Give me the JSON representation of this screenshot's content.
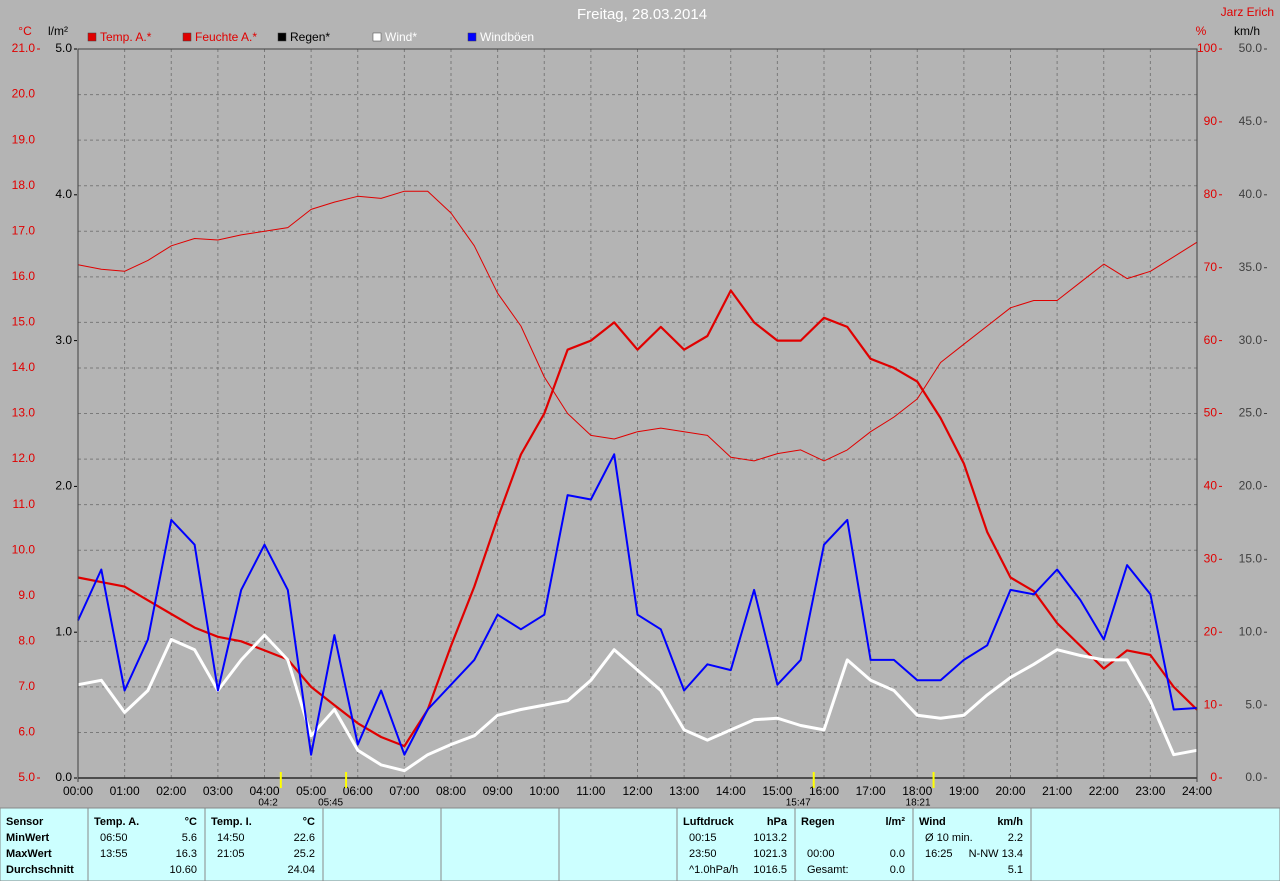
{
  "chart_data": {
    "type": "line",
    "title": "Freitag, 28.03.2014",
    "subtitle": "Jarz Erich",
    "ylabel": "°C",
    "y2label": "%",
    "y3label": "l/m²",
    "y4label": "km/h",
    "x": [
      0,
      0.5,
      1,
      1.5,
      2,
      2.5,
      3,
      3.5,
      4,
      4.5,
      5,
      5.5,
      6,
      6.5,
      7,
      7.5,
      8,
      8.5,
      9,
      9.5,
      10,
      10.5,
      11,
      11.5,
      12,
      12.5,
      13,
      13.5,
      14,
      14.5,
      15,
      15.5,
      16,
      16.5,
      17,
      17.5,
      18,
      18.5,
      19,
      19.5,
      20,
      20.5,
      21,
      21.5,
      22,
      22.5,
      23,
      23.5,
      24
    ],
    "xlim": [
      0,
      24
    ],
    "xticks": [
      {
        "value": 0,
        "label": "00:00"
      },
      {
        "value": 1,
        "label": "01:00"
      },
      {
        "value": 2,
        "label": "02:00"
      },
      {
        "value": 3,
        "label": "03:00"
      },
      {
        "value": 4,
        "label": "04:00"
      },
      {
        "value": 5,
        "label": "05:00"
      },
      {
        "value": 6,
        "label": "06:00"
      },
      {
        "value": 7,
        "label": "07:00"
      },
      {
        "value": 8,
        "label": "08:00"
      },
      {
        "value": 9,
        "label": "09:00"
      },
      {
        "value": 10,
        "label": "10:00"
      },
      {
        "value": 11,
        "label": "11:00"
      },
      {
        "value": 12,
        "label": "12:00"
      },
      {
        "value": 13,
        "label": "13:00"
      },
      {
        "value": 14,
        "label": "14:00"
      },
      {
        "value": 15,
        "label": "15:00"
      },
      {
        "value": 16,
        "label": "16:00"
      },
      {
        "value": 17,
        "label": "17:00"
      },
      {
        "value": 18,
        "label": "18:00"
      },
      {
        "value": 19,
        "label": "19:00"
      },
      {
        "value": 20,
        "label": "20:00"
      },
      {
        "value": 21,
        "label": "21:00"
      },
      {
        "value": 22,
        "label": "22:00"
      },
      {
        "value": 23,
        "label": "23:00"
      },
      {
        "value": 24,
        "label": "24:00"
      }
    ],
    "ylim": [
      5,
      21
    ],
    "yticks": [
      {
        "value": 5,
        "label": "5.0"
      },
      {
        "value": 6,
        "label": "6.0"
      },
      {
        "value": 7,
        "label": "7.0"
      },
      {
        "value": 8,
        "label": "8.0"
      },
      {
        "value": 9,
        "label": "9.0"
      },
      {
        "value": 10,
        "label": "10.0"
      },
      {
        "value": 11,
        "label": "11.0"
      },
      {
        "value": 12,
        "label": "12.0"
      },
      {
        "value": 13,
        "label": "13.0"
      },
      {
        "value": 14,
        "label": "14.0"
      },
      {
        "value": 15,
        "label": "15.0"
      },
      {
        "value": 16,
        "label": "16.0"
      },
      {
        "value": 17,
        "label": "17.0"
      },
      {
        "value": 18,
        "label": "18.0"
      },
      {
        "value": 19,
        "label": "19.0"
      },
      {
        "value": 20,
        "label": "20.0"
      },
      {
        "value": 21,
        "label": "21.0"
      }
    ],
    "y2lim": [
      0,
      100
    ],
    "y2ticks": [
      0,
      10,
      20,
      30,
      40,
      50,
      60,
      70,
      80,
      90,
      100
    ],
    "y3lim": [
      0,
      5
    ],
    "y3ticks": [
      {
        "value": 0,
        "label": "0.0"
      },
      {
        "value": 1,
        "label": "1.0"
      },
      {
        "value": 2,
        "label": "2.0"
      },
      {
        "value": 3,
        "label": "3.0"
      },
      {
        "value": 4,
        "label": "4.0"
      },
      {
        "value": 5,
        "label": "5.0"
      }
    ],
    "y4lim": [
      0,
      50
    ],
    "y4ticks": [
      {
        "value": 0,
        "label": "0.0"
      },
      {
        "value": 5,
        "label": "5.0"
      },
      {
        "value": 10,
        "label": "10.0"
      },
      {
        "value": 15,
        "label": "15.0"
      },
      {
        "value": 20,
        "label": "20.0"
      },
      {
        "value": 25,
        "label": "25.0"
      },
      {
        "value": 30,
        "label": "30.0"
      },
      {
        "value": 35,
        "label": "35.0"
      },
      {
        "value": 40,
        "label": "40.0"
      },
      {
        "value": 45,
        "label": "45.0"
      },
      {
        "value": 50,
        "label": "50.0"
      }
    ],
    "grid": true,
    "series": [
      {
        "name": "Temp. A.*",
        "color": "#e00000",
        "axis": "y",
        "values": [
          9.4,
          9.3,
          9.2,
          8.9,
          8.6,
          8.3,
          8.1,
          8.0,
          7.8,
          7.6,
          7.0,
          6.6,
          6.2,
          5.9,
          5.7,
          6.5,
          7.9,
          9.2,
          10.7,
          12.1,
          13.0,
          14.4,
          14.6,
          15.0,
          14.4,
          14.9,
          14.4,
          14.7,
          15.7,
          15.0,
          14.6,
          14.6,
          15.1,
          14.9,
          14.2,
          14.0,
          13.7,
          12.9,
          11.9,
          10.4,
          9.4,
          9.1,
          8.4,
          7.9,
          7.4,
          7.8,
          7.7,
          7.0,
          6.5
        ]
      },
      {
        "name": "Feuchte A.*",
        "color": "#e00000",
        "axis": "y2",
        "values": [
          70.4,
          69.8,
          69.5,
          71,
          73,
          74,
          73.8,
          74.5,
          75,
          75.5,
          78,
          79,
          79.8,
          79.5,
          80.5,
          80.5,
          77.5,
          73,
          66.5,
          62,
          55,
          50,
          47,
          46.5,
          47.5,
          48,
          47.5,
          47,
          44,
          43.5,
          44.5,
          45,
          43.5,
          45,
          47.5,
          49.5,
          52,
          57,
          59.5,
          62,
          64.5,
          65.5,
          65.5,
          68,
          70.5,
          68.5,
          69.5,
          71.5,
          73.5
        ]
      },
      {
        "name": "Regen*",
        "color": "#000000",
        "axis": "y3",
        "values": [
          0,
          0,
          0,
          0,
          0,
          0,
          0,
          0,
          0,
          0,
          0,
          0,
          0,
          0,
          0,
          0,
          0,
          0,
          0,
          0,
          0,
          0,
          0,
          0,
          0,
          0,
          0,
          0,
          0,
          0,
          0,
          0,
          0,
          0,
          0,
          0,
          0,
          0,
          0,
          0,
          0,
          0,
          0,
          0,
          0,
          0,
          0,
          0,
          0
        ]
      },
      {
        "name": "Wind*",
        "color": "#ffffff",
        "axis": "y4",
        "values": [
          6.4,
          6.7,
          4.5,
          6.0,
          9.5,
          8.8,
          6.0,
          8.1,
          9.8,
          8.1,
          2.9,
          4.7,
          1.9,
          0.9,
          0.5,
          1.6,
          2.3,
          2.9,
          4.3,
          4.7,
          5.0,
          5.3,
          6.7,
          8.8,
          7.4,
          6.0,
          3.3,
          2.6,
          3.3,
          4.0,
          4.1,
          3.6,
          3.3,
          8.1,
          6.7,
          6.0,
          4.3,
          4.1,
          4.3,
          5.7,
          6.9,
          7.8,
          8.8,
          8.4,
          8.1,
          8.1,
          5.3,
          1.6,
          1.9
        ]
      },
      {
        "name": "Windböen",
        "color": "#0000ff",
        "axis": "y4",
        "values": [
          10.8,
          14.3,
          6.0,
          9.5,
          17.7,
          16.0,
          6.0,
          12.9,
          16.0,
          12.9,
          1.6,
          9.8,
          2.3,
          6.0,
          1.6,
          4.7,
          6.4,
          8.1,
          11.2,
          10.2,
          11.2,
          19.4,
          19.1,
          22.2,
          11.2,
          10.2,
          6.0,
          7.8,
          7.4,
          12.9,
          6.4,
          8.1,
          16.0,
          17.7,
          8.1,
          8.1,
          6.7,
          6.7,
          8.1,
          9.1,
          12.9,
          12.6,
          14.3,
          12.2,
          9.5,
          14.6,
          12.6,
          4.7,
          4.8
        ]
      }
    ],
    "annotations": [
      {
        "text": "04:2",
        "x": 4.35
      },
      {
        "text": "05:45",
        "x": 5.75
      },
      {
        "text": "15:47",
        "x": 15.78
      },
      {
        "text": "18:21",
        "x": 18.35
      }
    ]
  },
  "stats": {
    "columns": [
      {
        "header": [
          "Sensor"
        ],
        "rows": [
          [
            "MinWert"
          ],
          [
            "MaxWert"
          ],
          [
            "Durchschnitt"
          ]
        ]
      },
      {
        "header": [
          "Temp. A.",
          "°C"
        ],
        "rows": [
          [
            "06:50",
            "5.6"
          ],
          [
            "13:55",
            "16.3"
          ],
          [
            null,
            "10.60"
          ]
        ]
      },
      {
        "header": [
          "Temp. I.",
          "°C"
        ],
        "rows": [
          [
            "14:50",
            "22.6"
          ],
          [
            "21:05",
            "25.2"
          ],
          [
            null,
            "24.04"
          ]
        ]
      },
      {
        "header": [
          "Luftdruck",
          "hPa"
        ],
        "rows": [
          [
            "00:15",
            "1013.2"
          ],
          [
            "23:50",
            "1021.3"
          ],
          [
            "^1.0hPa/h",
            "1016.5"
          ]
        ]
      },
      {
        "header": [
          "Regen",
          "l/m²"
        ],
        "rows": [
          [
            null,
            null
          ],
          [
            "00:00",
            "0.0"
          ],
          [
            "Gesamt:",
            "0.0"
          ]
        ]
      },
      {
        "header": [
          "Wind",
          "km/h"
        ],
        "rows": [
          [
            "Ø 10 min.",
            "2.2"
          ],
          [
            "16:25",
            "N-NW 13.4"
          ],
          [
            null,
            "5.1"
          ]
        ]
      }
    ]
  }
}
